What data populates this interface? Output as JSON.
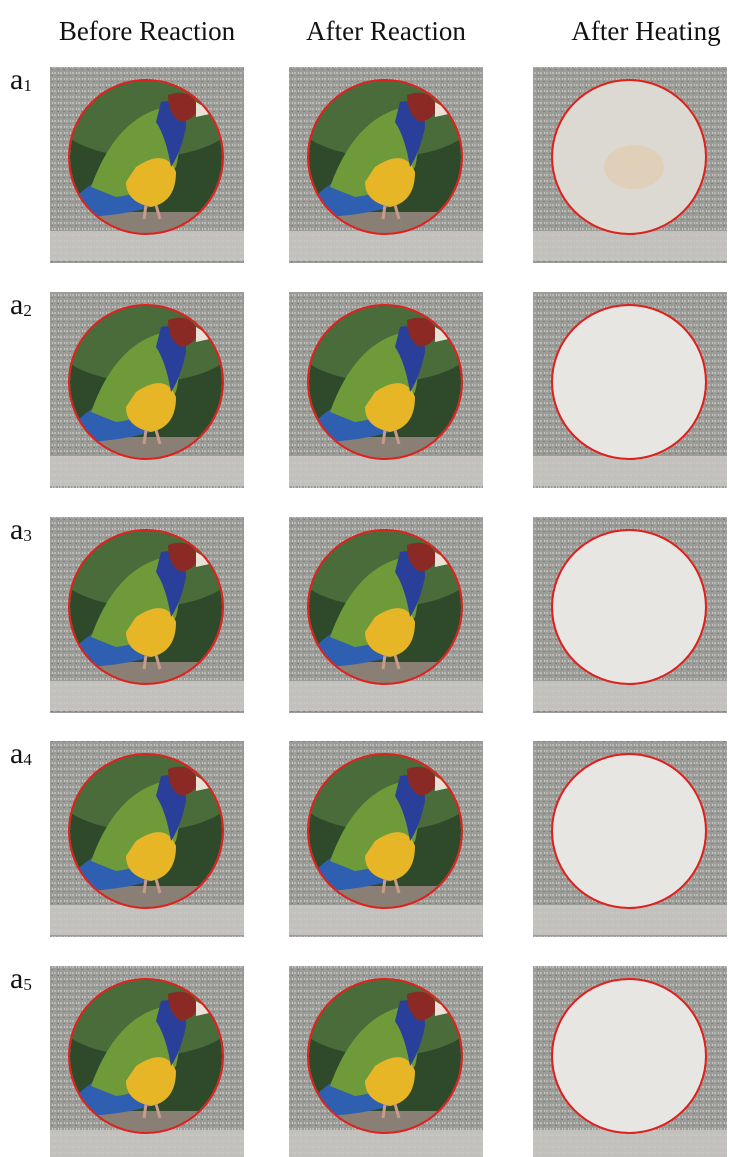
{
  "header": {
    "columns": [
      "Before Reaction",
      "After Reaction",
      "After Heating"
    ]
  },
  "rows": [
    {
      "label": "a",
      "subscript": "1"
    },
    {
      "label": "a",
      "subscript": "2"
    },
    {
      "label": "a",
      "subscript": "3"
    },
    {
      "label": "a",
      "subscript": "4"
    },
    {
      "label": "a",
      "subscript": "5"
    }
  ]
}
